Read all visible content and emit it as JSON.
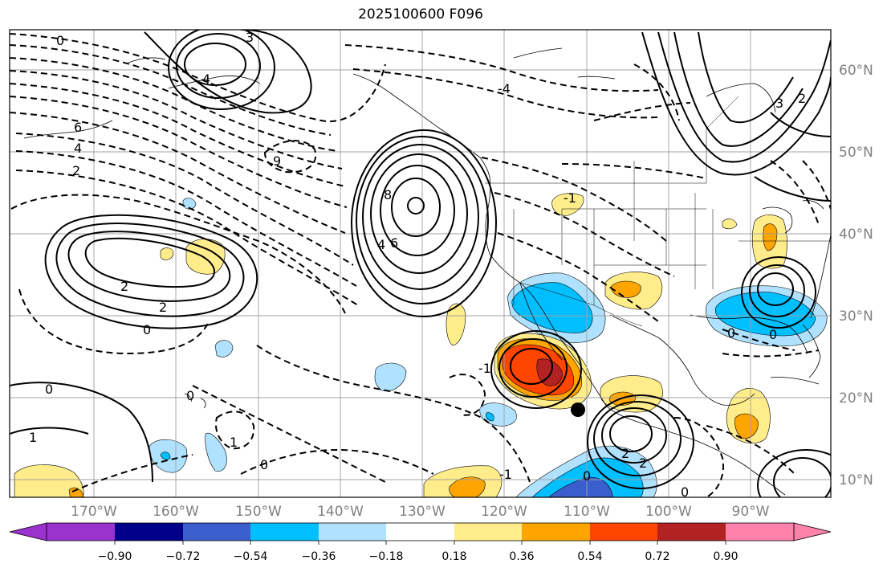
{
  "title": "2025100600 F096",
  "lat_labels": [
    "60°N",
    "50°N",
    "40°N",
    "30°N",
    "20°N",
    "10°N"
  ],
  "lon_labels": [
    "170°W",
    "160°W",
    "150°W",
    "140°W",
    "130°W",
    "120°W",
    "110°W",
    "100°W",
    "90°W"
  ],
  "colorbar": {
    "ticks": [
      "−0.90",
      "−0.72",
      "−0.54",
      "−0.36",
      "−0.18",
      "0.18",
      "0.36",
      "0.54",
      "0.72",
      "0.90"
    ],
    "colors": [
      "#9a32cd",
      "#00008b",
      "#3a5fcd",
      "#00bfff",
      "#b0e2ff",
      "#ffffff",
      "#ffec8b",
      "#ffa500",
      "#ff4500",
      "#b22222",
      "#ff82ab"
    ]
  },
  "contour_labels": [
    "0",
    "3",
    "4",
    "6",
    "4",
    "2",
    "-4",
    "9",
    "8",
    "6",
    "4",
    "2",
    "2",
    "0",
    "0",
    "1",
    "0",
    "1",
    "0",
    "-1",
    "-1",
    "-1",
    "2",
    "2",
    "0",
    "0",
    "3",
    "2",
    "0",
    "0"
  ],
  "colors": {
    "neg_dark": "#3a5fcd",
    "neg_mid": "#00bfff",
    "neg_light": "#b0e2ff",
    "pos_light": "#ffec8b",
    "pos_mid": "#ffa500",
    "pos_strong": "#ff4500",
    "pos_max": "#b22222"
  }
}
